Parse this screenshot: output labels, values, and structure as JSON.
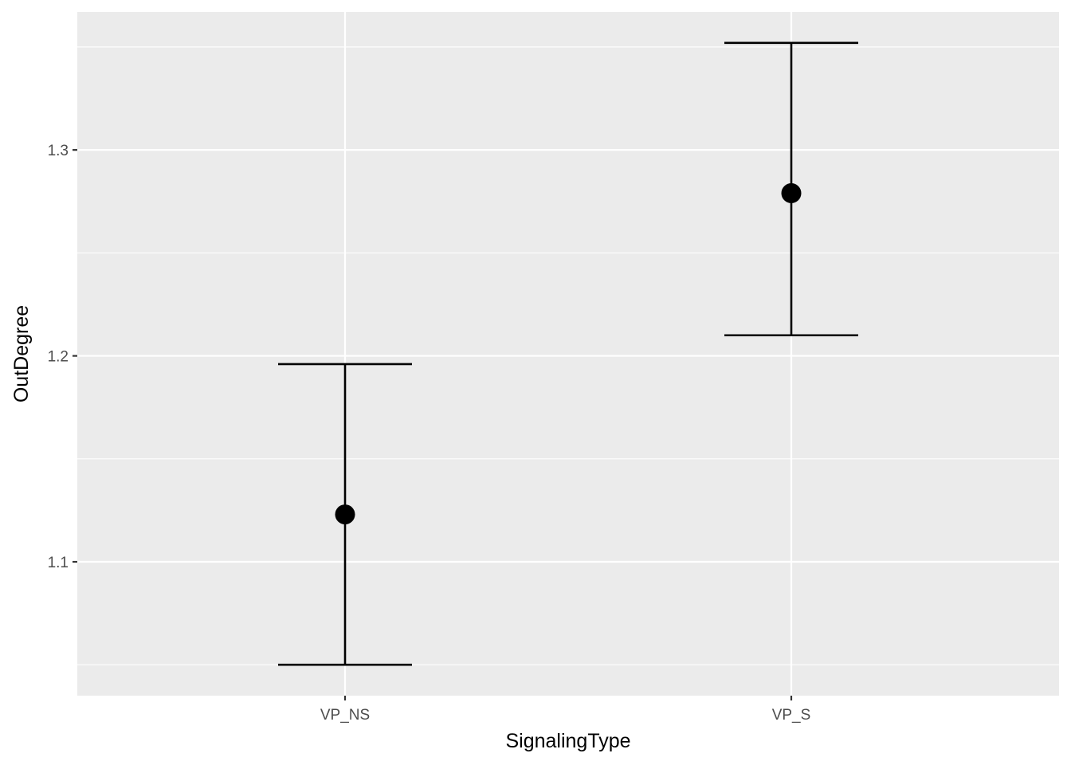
{
  "chart_data": {
    "type": "scatter",
    "subtype": "point-with-errorbars",
    "title": "",
    "xlabel": "SignalingType",
    "ylabel": "OutDegree",
    "categories": [
      "VP_NS",
      "VP_S"
    ],
    "points": [
      {
        "category": "VP_NS",
        "y": 1.123,
        "ymin": 1.05,
        "ymax": 1.196
      },
      {
        "category": "VP_S",
        "y": 1.279,
        "ymin": 1.21,
        "ymax": 1.352
      }
    ],
    "ylim": [
      1.035,
      1.367
    ],
    "y_ticks": [
      1.1,
      1.2,
      1.3
    ],
    "y_tick_labels": [
      "1.1",
      "1.2",
      "1.3"
    ],
    "y_minor_ticks": [
      1.05,
      1.15,
      1.25,
      1.35
    ],
    "grid": true,
    "legend": "none",
    "colors": {
      "panel_background": "#ebebeb",
      "grid_line": "#ffffff",
      "mark": "#000000",
      "tick_label": "#4d4d4d",
      "axis_tick": "#333333"
    }
  }
}
